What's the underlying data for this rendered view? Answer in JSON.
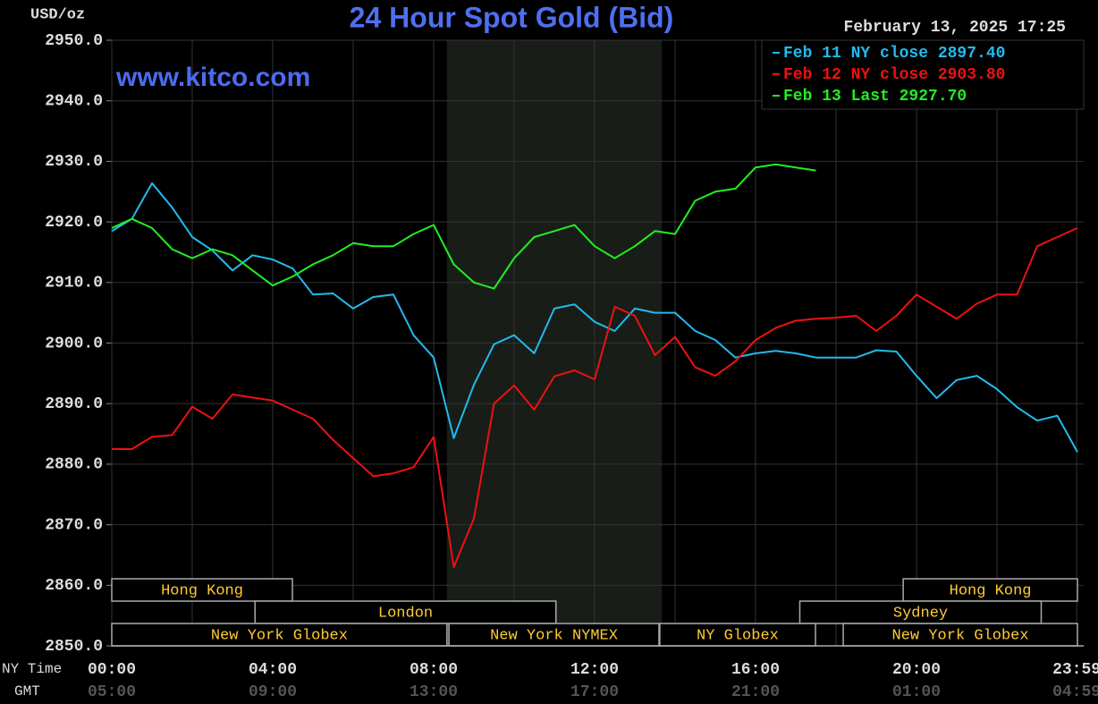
{
  "chart_data": {
    "type": "line",
    "title": "24 Hour Spot Gold (Bid)",
    "y_label": "USD/oz",
    "timestamp": "February 13, 2025 17:25",
    "watermark": "www.kitco.com",
    "x_label": "NY Time",
    "x2_label": "GMT",
    "x": [
      0,
      0.5,
      1,
      1.5,
      2,
      2.5,
      3,
      3.5,
      4,
      4.5,
      5,
      5.5,
      6,
      6.5,
      7,
      7.5,
      8,
      8.5,
      9,
      9.5,
      10,
      10.5,
      11,
      11.5,
      12,
      12.5,
      13,
      13.5,
      14,
      14.5,
      15,
      15.5,
      16,
      16.5,
      17,
      17.5,
      18,
      18.5,
      19,
      19.5,
      20,
      20.5,
      21,
      21.5,
      22,
      22.5,
      23,
      23.5,
      24
    ],
    "xlim": [
      0,
      24
    ],
    "xticks": [
      {
        "value": 0,
        "label": "00:00"
      },
      {
        "value": 4,
        "label": "04:00"
      },
      {
        "value": 8,
        "label": "08:00"
      },
      {
        "value": 12,
        "label": "12:00"
      },
      {
        "value": 16,
        "label": "16:00"
      },
      {
        "value": 20,
        "label": "20:00"
      },
      {
        "value": 23.98,
        "label": "23:59"
      }
    ],
    "x2ticks": [
      {
        "value": 0,
        "label": "05:00"
      },
      {
        "value": 4,
        "label": "09:00"
      },
      {
        "value": 8,
        "label": "13:00"
      },
      {
        "value": 12,
        "label": "17:00"
      },
      {
        "value": 16,
        "label": "21:00"
      },
      {
        "value": 20,
        "label": "01:00"
      },
      {
        "value": 23.98,
        "label": "04:59"
      }
    ],
    "xgrid": [
      2,
      6,
      10,
      14,
      18,
      22
    ],
    "ylim": [
      2850,
      2950
    ],
    "yticks": [
      {
        "value": 2850,
        "label": "2850.0"
      },
      {
        "value": 2860,
        "label": "2860.0"
      },
      {
        "value": 2870,
        "label": "2870.0"
      },
      {
        "value": 2880,
        "label": "2880.0"
      },
      {
        "value": 2890,
        "label": "2890.0"
      },
      {
        "value": 2900,
        "label": "2900.0"
      },
      {
        "value": 2910,
        "label": "2910.0"
      },
      {
        "value": 2920,
        "label": "2920.0"
      },
      {
        "value": 2930,
        "label": "2930.0"
      },
      {
        "value": 2940,
        "label": "2940.0"
      },
      {
        "value": 2950,
        "label": "2950.0"
      }
    ],
    "grid": true,
    "legend": "upper right",
    "shade": [
      8.33,
      13.67
    ],
    "sessions": [
      [
        {
          "label": "Hong Kong",
          "start": 0,
          "end": 4.49
        },
        {
          "label": "Hong Kong",
          "start": 19.67,
          "end": 24
        }
      ],
      [
        {
          "label": "London",
          "start": 3.56,
          "end": 11.04
        },
        {
          "label": "Sydney",
          "start": 17.1,
          "end": 23.1
        }
      ],
      [
        {
          "label": "New York Globex",
          "start": 0,
          "end": 8.33
        },
        {
          "label": "New York NYMEX",
          "start": 8.38,
          "end": 13.6
        },
        {
          "label": "NY Globex",
          "start": 13.62,
          "end": 17.49
        },
        {
          "label": "New York Globex",
          "start": 18.18,
          "end": 24
        }
      ]
    ],
    "series": [
      {
        "name": "Feb 11 NY close 2897.40",
        "color": "#22bbee",
        "values": [
          2918.5,
          2920.5,
          2926.4,
          2922.4,
          2917.5,
          2915.3,
          2912,
          2914.5,
          2913.8,
          2912.3,
          2908,
          2908.2,
          2905.7,
          2907.6,
          2908,
          2901.3,
          2897.6,
          2884.3,
          2893.1,
          2899.8,
          2901.3,
          2898.3,
          2905.7,
          2906.4,
          2903.5,
          2902,
          2905.7,
          2905,
          2905,
          2902,
          2900.5,
          2897.6,
          2898.3,
          2898.7,
          2898.3,
          2897.6,
          2897.6,
          2897.6,
          2898.8,
          2898.6,
          2894.6,
          2890.9,
          2893.9,
          2894.6,
          2892.4,
          2889.4,
          2887.2,
          2888,
          2882
        ]
      },
      {
        "name": "Feb 12 NY close 2903.80",
        "color": "#ee1111",
        "values": [
          2882.5,
          2882.5,
          2884.5,
          2884.8,
          2889.5,
          2887.5,
          2891.5,
          2891,
          2890.5,
          2889,
          2887.5,
          2884,
          2881,
          2878,
          2878.5,
          2879.5,
          2884.5,
          2863,
          2871,
          2890,
          2893,
          2889,
          2894.5,
          2895.5,
          2894,
          2906,
          2904.5,
          2898,
          2901,
          2896,
          2894.6,
          2897,
          2900.5,
          2902.5,
          2903.7,
          2904,
          2904.2,
          2904.5,
          2902,
          2904.5,
          2908,
          2906,
          2904,
          2906.5,
          2908,
          2908,
          2916,
          2917.5,
          2919
        ]
      },
      {
        "name": "Feb 13 Last 2927.70",
        "color": "#22ee22",
        "values": [
          2919,
          2920.5,
          2919,
          2915.5,
          2914,
          2915.5,
          2914.5,
          2912,
          2909.5,
          2911,
          2913,
          2914.5,
          2916.5,
          2916,
          2916,
          2918,
          2919.5,
          2913,
          2910,
          2909,
          2914,
          2917.5,
          2918.5,
          2919.5,
          2916,
          2914,
          2916,
          2918.5,
          2918,
          2923.5,
          2925,
          2925.5,
          2929,
          2929.5,
          2929,
          2928.5,
          null,
          null,
          null,
          null,
          null,
          null,
          null,
          null,
          null,
          null,
          null,
          null,
          null
        ]
      }
    ]
  }
}
